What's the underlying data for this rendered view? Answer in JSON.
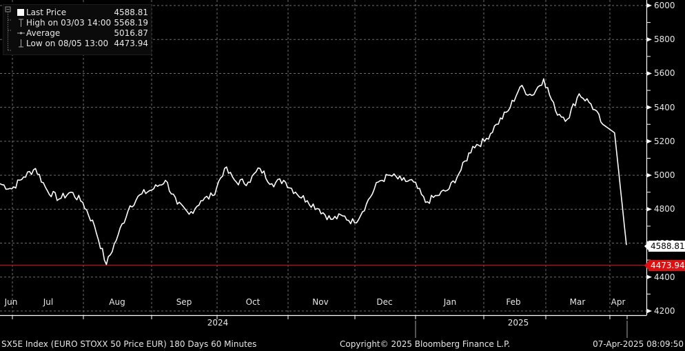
{
  "legend": {
    "last": {
      "label": "Last Price",
      "value": "4588.81"
    },
    "high": {
      "label": "High on 03/03 14:00",
      "value": "5568.19"
    },
    "average": {
      "label": "Average",
      "value": "5016.87"
    },
    "low": {
      "label": "Low on 08/05 13:00",
      "value": "4473.94"
    }
  },
  "tags": {
    "last": "4588.81",
    "low": "4473.94"
  },
  "footer": {
    "left": "SX5E Index (EURO STOXX 50 Price EUR) 180 Days 60 Minutes",
    "center": "Copyright© 2025 Bloomberg Finance L.P.",
    "right": "07-Apr-2025 08:09:50"
  },
  "colors": {
    "background": "#000000",
    "line": "#ffffff",
    "low_line": "#c0101a",
    "grid": "#6e6e6e",
    "last_tag": "#ffffff",
    "low_tag": "#e01010"
  },
  "chart_data": {
    "type": "line",
    "title": "SX5E Index (EURO STOXX 50 Price EUR) 180 Days 60 Minutes",
    "xlabel": "",
    "ylabel": "",
    "ylim": [
      4200,
      6000
    ],
    "y_ticks": [
      4200,
      4400,
      4600,
      4800,
      5000,
      5200,
      5400,
      5600,
      5800,
      6000
    ],
    "x_ticks": [
      "Jun",
      "Jul",
      "Aug",
      "Sep",
      "Oct",
      "Nov",
      "Dec",
      "Jan",
      "Feb",
      "Mar",
      "Apr"
    ],
    "x_year_labels": [
      "2024",
      "2025"
    ],
    "grid": true,
    "legend_position": "top-left",
    "horizontal_line": {
      "label": "Low",
      "value": 4473.94
    },
    "series": [
      {
        "name": "Last Price",
        "x": [
          "Jun",
          "Jun",
          "Jun",
          "Jul",
          "Jul",
          "Jul",
          "Jul",
          "Jul",
          "Jul",
          "Aug",
          "Aug",
          "Aug",
          "Aug",
          "Aug",
          "Aug",
          "Aug",
          "Sep",
          "Sep",
          "Sep",
          "Sep",
          "Sep",
          "Oct",
          "Oct",
          "Oct",
          "Oct",
          "Oct",
          "Nov",
          "Nov",
          "Nov",
          "Nov",
          "Nov",
          "Nov",
          "Dec",
          "Dec",
          "Dec",
          "Dec",
          "Dec",
          "Jan",
          "Jan",
          "Jan",
          "Jan",
          "Jan",
          "Feb",
          "Feb",
          "Feb",
          "Feb",
          "Mar",
          "Mar",
          "Mar",
          "Mar",
          "Mar",
          "Apr",
          "Apr",
          "Apr"
        ],
        "values": [
          4950,
          4920,
          4990,
          5040,
          4910,
          4860,
          4900,
          4840,
          4700,
          4473.94,
          4650,
          4820,
          4890,
          4920,
          4970,
          4830,
          4770,
          4850,
          4880,
          5040,
          4960,
          4960,
          5040,
          4950,
          4970,
          4900,
          4850,
          4800,
          4740,
          4760,
          4720,
          4830,
          4960,
          5000,
          4970,
          4960,
          4840,
          4880,
          4920,
          5030,
          5170,
          5200,
          5300,
          5380,
          5520,
          5470,
          5568.19,
          5380,
          5330,
          5480,
          5420,
          5300,
          5250,
          4588.81
        ]
      }
    ],
    "summary": {
      "last": 4588.81,
      "high": 5568.19,
      "high_time": "03/03 14:00",
      "average": 5016.87,
      "low": 4473.94,
      "low_time": "08/05 13:00"
    }
  }
}
